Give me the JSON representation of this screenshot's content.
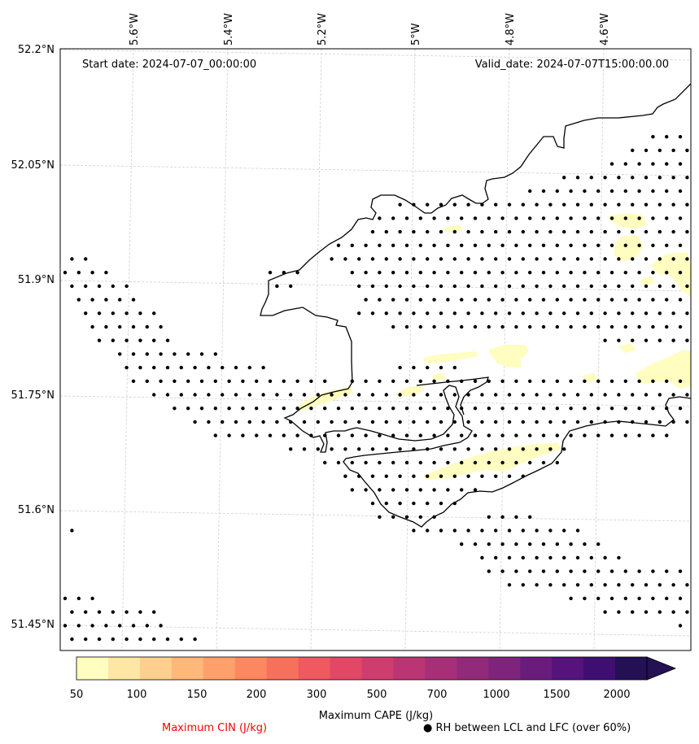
{
  "header": {
    "start_date": "Start date: 2024-07-07_00:00:00",
    "valid_date": "Valid_date: 2024-07-07T15:00:00.00"
  },
  "map": {
    "lon_labels": [
      "5.6°W",
      "5.4°W",
      "5.2°W",
      "5°W",
      "4.8°W",
      "4.6°W"
    ],
    "lat_labels": [
      "52.2°N",
      "52.05°N",
      "51.9°N",
      "51.75°N",
      "51.6°N",
      "51.45°N"
    ],
    "stipple_color": "#000000",
    "cape_colors": [
      "#fffdbf",
      "#fee6a4",
      "#fecf8e",
      "#feb87a",
      "#fea06c",
      "#fc8761",
      "#f7705c",
      "#ef5960",
      "#e24766",
      "#cf3d6e",
      "#bb3575",
      "#a62f78",
      "#922a7a",
      "#7e247b",
      "#6a1c7c",
      "#55137b",
      "#3e0f70",
      "#231153"
    ]
  },
  "colorbar": {
    "tick_labels": [
      "50",
      "100",
      "150",
      "200",
      "300",
      "500",
      "700",
      "1000",
      "1500",
      "2000"
    ],
    "label": "Maximum CAPE (J/kg)"
  },
  "legend": {
    "cin_label": "Maximum CIN (J/kg)",
    "cin_color": "#ff0000",
    "rh_symbol": "●",
    "rh_label": "RH between LCL and LFC (over 60%)"
  }
}
